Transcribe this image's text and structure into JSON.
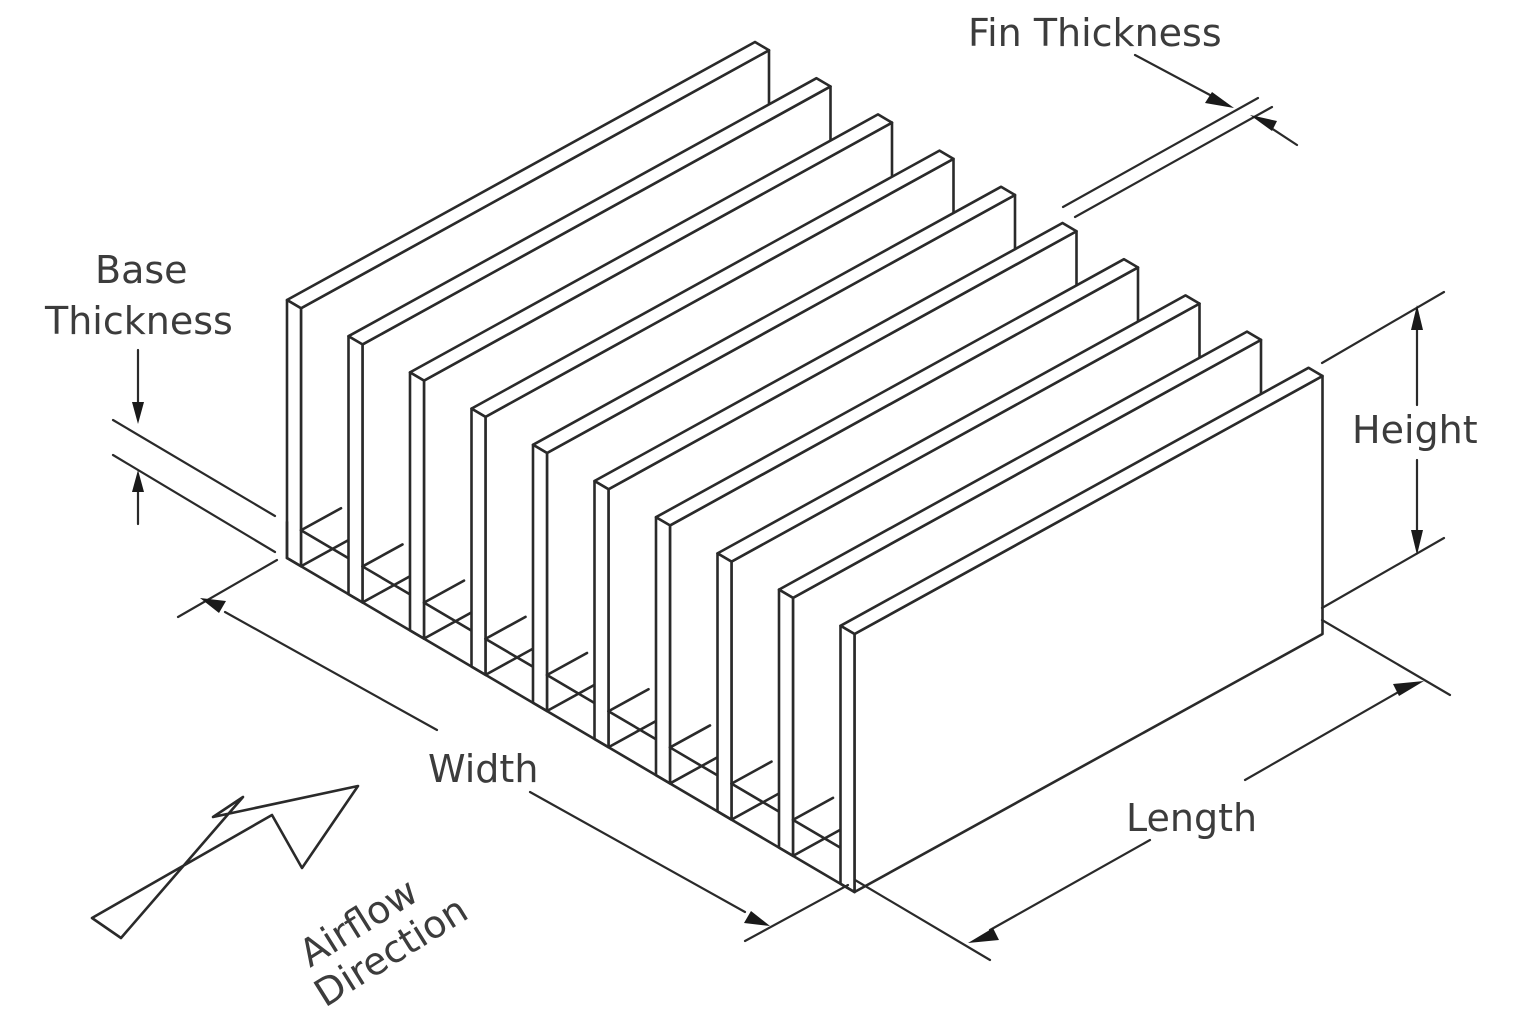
{
  "labels": {
    "fin_thickness": "Fin Thickness",
    "base_thickness_line1": "Base",
    "base_thickness_line2": "Thickness",
    "height": "Height",
    "width": "Width",
    "length": "Length",
    "airflow_line1": "Airflow",
    "airflow_line2": "Direction"
  },
  "heatsink": {
    "fin_count": 10
  },
  "colors": {
    "line": "#2a2a2a",
    "text": "#3c3c3c",
    "background": "#ffffff"
  }
}
